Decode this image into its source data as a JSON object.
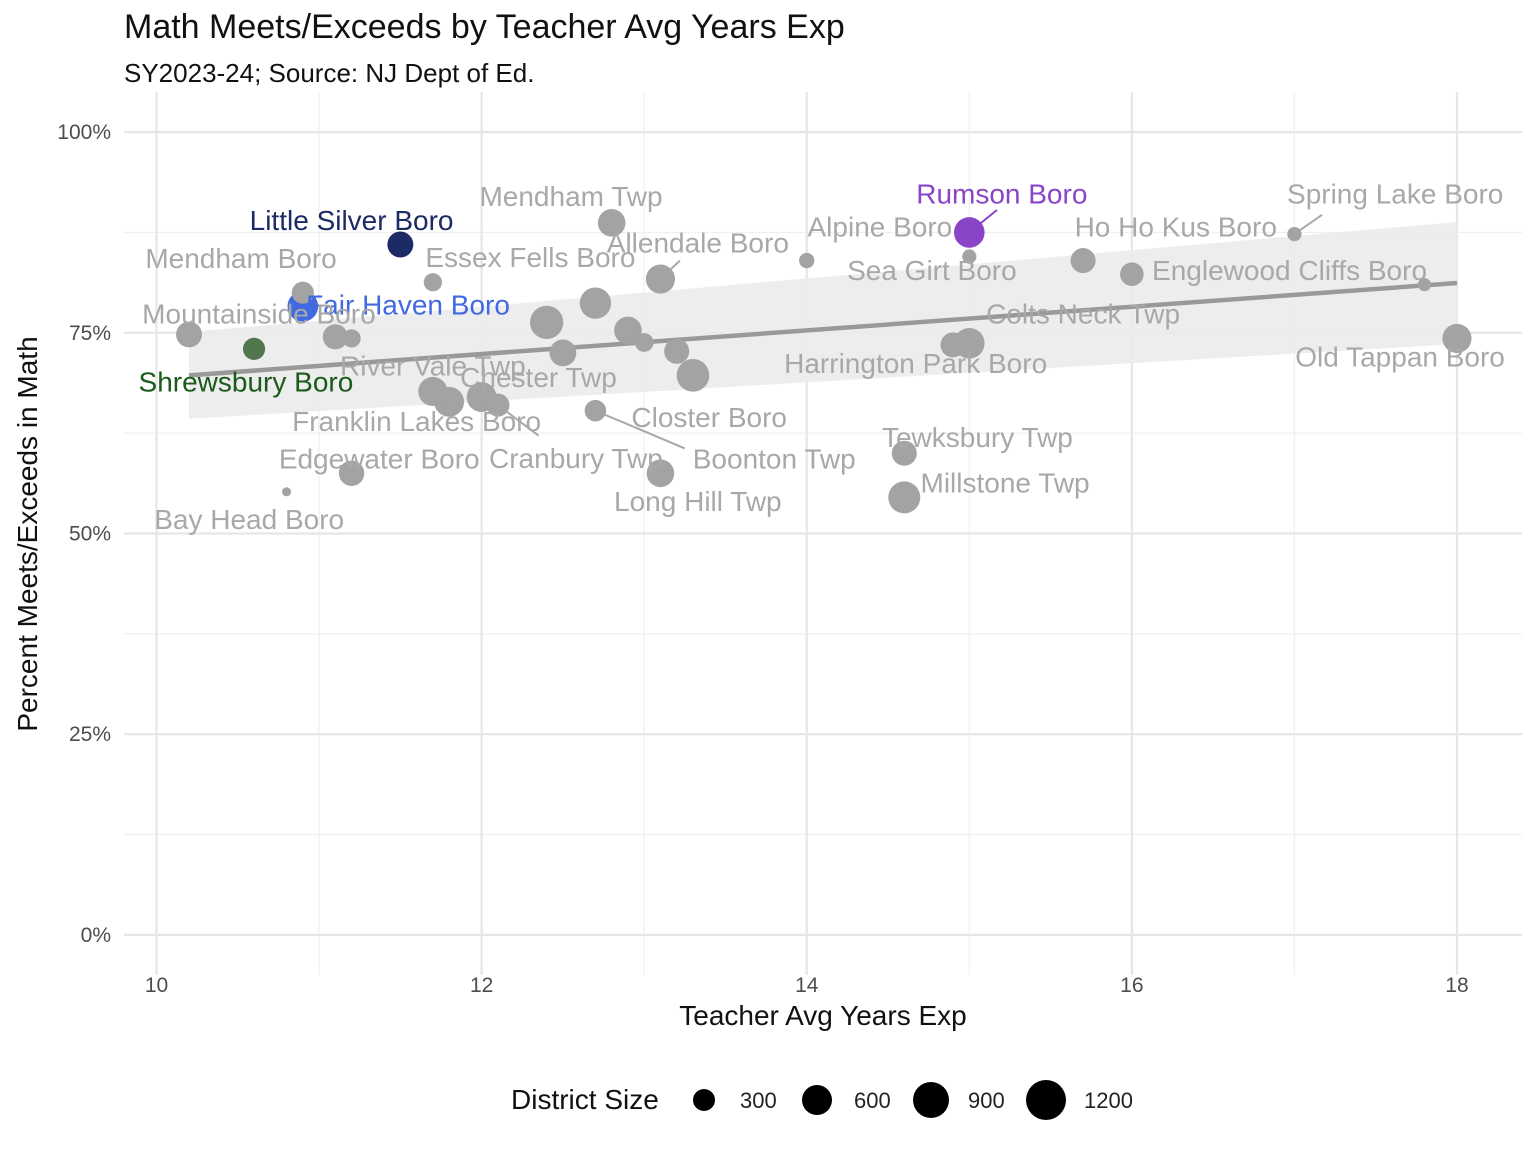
{
  "chart_data": {
    "type": "scatter",
    "title": "Math Meets/Exceeds by Teacher Avg Years Exp",
    "subtitle": "SY2023-24; Source: NJ Dept of Ed.",
    "xlabel": "Teacher Avg Years Exp",
    "ylabel": "Percent Meets/Exceeds in Math",
    "xlim": [
      9.8,
      18.4
    ],
    "ylim": [
      -0.05,
      1.05
    ],
    "x_ticks": [
      10,
      12,
      14,
      16,
      18
    ],
    "x_tick_labels": [
      "10",
      "12",
      "14",
      "16",
      "18"
    ],
    "y_ticks": [
      0,
      0.25,
      0.5,
      0.75,
      1.0
    ],
    "y_tick_labels": [
      "0%",
      "25%",
      "50%",
      "75%",
      "100%"
    ],
    "grid": true,
    "legend": {
      "title": "District Size",
      "position": "bottom",
      "sizes": [
        300,
        600,
        900,
        1200
      ],
      "labels": [
        "300",
        "600",
        "900",
        "1200"
      ]
    },
    "trend_line": {
      "x": [
        10.2,
        18.0
      ],
      "y": [
        0.697,
        0.812
      ],
      "band_lower": [
        0.643,
        0.736
      ],
      "band_upper": [
        0.751,
        0.888
      ],
      "color": "#999999"
    },
    "colors": {
      "default_point": "#a3a3a3",
      "default_label": "#a8a8a8",
      "little_silver": "#1c2a66",
      "fair_haven": "#4169e1",
      "rumson": "#8a44c8",
      "shrewsbury": "#52774f",
      "shrewsbury_label": "#1a5a1a"
    },
    "points": [
      {
        "x": 10.2,
        "y": 0.748,
        "size": 650,
        "color": "default_point"
      },
      {
        "x": 10.6,
        "y": 0.73,
        "size": 450,
        "color": "shrewsbury"
      },
      {
        "x": 10.8,
        "y": 0.552,
        "size": 40,
        "color": "default_point"
      },
      {
        "x": 10.9,
        "y": 0.8,
        "size": 450,
        "color": "default_point"
      },
      {
        "x": 10.9,
        "y": 0.783,
        "size": 950,
        "color": "fair_haven"
      },
      {
        "x": 11.1,
        "y": 0.745,
        "size": 600,
        "color": "default_point"
      },
      {
        "x": 11.2,
        "y": 0.743,
        "size": 280,
        "color": "default_point"
      },
      {
        "x": 11.2,
        "y": 0.575,
        "size": 620,
        "color": "default_point"
      },
      {
        "x": 11.5,
        "y": 0.86,
        "size": 650,
        "color": "little_silver"
      },
      {
        "x": 11.7,
        "y": 0.813,
        "size": 280,
        "color": "default_point"
      },
      {
        "x": 11.7,
        "y": 0.677,
        "size": 850,
        "color": "default_point"
      },
      {
        "x": 11.8,
        "y": 0.664,
        "size": 900,
        "color": "default_point"
      },
      {
        "x": 12.0,
        "y": 0.67,
        "size": 900,
        "color": "default_point"
      },
      {
        "x": 12.1,
        "y": 0.66,
        "size": 500,
        "color": "default_point"
      },
      {
        "x": 12.4,
        "y": 0.763,
        "size": 1150,
        "color": "default_point"
      },
      {
        "x": 12.5,
        "y": 0.725,
        "size": 700,
        "color": "default_point"
      },
      {
        "x": 12.7,
        "y": 0.787,
        "size": 1000,
        "color": "default_point"
      },
      {
        "x": 12.7,
        "y": 0.653,
        "size": 420,
        "color": "default_point"
      },
      {
        "x": 12.8,
        "y": 0.887,
        "size": 750,
        "color": "default_point"
      },
      {
        "x": 12.9,
        "y": 0.753,
        "size": 750,
        "color": "default_point"
      },
      {
        "x": 13.0,
        "y": 0.738,
        "size": 300,
        "color": "default_point"
      },
      {
        "x": 13.1,
        "y": 0.817,
        "size": 850,
        "color": "default_point"
      },
      {
        "x": 13.1,
        "y": 0.575,
        "size": 750,
        "color": "default_point"
      },
      {
        "x": 13.2,
        "y": 0.727,
        "size": 600,
        "color": "default_point"
      },
      {
        "x": 13.3,
        "y": 0.697,
        "size": 1100,
        "color": "default_point"
      },
      {
        "x": 14.0,
        "y": 0.84,
        "size": 180,
        "color": "default_point"
      },
      {
        "x": 14.6,
        "y": 0.6,
        "size": 600,
        "color": "default_point"
      },
      {
        "x": 14.6,
        "y": 0.545,
        "size": 1050,
        "color": "default_point"
      },
      {
        "x": 14.9,
        "y": 0.735,
        "size": 600,
        "color": "default_point"
      },
      {
        "x": 15.0,
        "y": 0.737,
        "size": 950,
        "color": "default_point"
      },
      {
        "x": 15.0,
        "y": 0.845,
        "size": 150,
        "color": "default_point"
      },
      {
        "x": 15.0,
        "y": 0.875,
        "size": 950,
        "color": "rumson"
      },
      {
        "x": 15.7,
        "y": 0.84,
        "size": 600,
        "color": "default_point"
      },
      {
        "x": 16.0,
        "y": 0.823,
        "size": 520,
        "color": "default_point"
      },
      {
        "x": 17.0,
        "y": 0.873,
        "size": 150,
        "color": "default_point"
      },
      {
        "x": 17.8,
        "y": 0.81,
        "size": 120,
        "color": "default_point"
      },
      {
        "x": 18.0,
        "y": 0.743,
        "size": 850,
        "color": "default_point"
      }
    ],
    "annotations": [
      {
        "text": "Little Silver Boro",
        "x": 11.2,
        "y": 0.887,
        "color": "little_silver",
        "anchor": "middle"
      },
      {
        "text": "Fair Haven Boro",
        "x": 10.92,
        "y": 0.782,
        "color": "fair_haven",
        "anchor": "start"
      },
      {
        "text": "Rumson Boro",
        "x": 15.2,
        "y": 0.92,
        "color": "rumson",
        "anchor": "middle"
      },
      {
        "text": "Shrewsbury Boro",
        "x": 10.55,
        "y": 0.686,
        "color": "shrewsbury_label",
        "anchor": "middle"
      },
      {
        "text": "Mendham Twp",
        "x": 12.55,
        "y": 0.917,
        "color": "default_label",
        "anchor": "middle"
      },
      {
        "text": "Mendham Boro",
        "x": 10.52,
        "y": 0.84,
        "color": "default_label",
        "anchor": "middle"
      },
      {
        "text": "Essex Fells Boro",
        "x": 12.3,
        "y": 0.841,
        "color": "default_label",
        "anchor": "middle"
      },
      {
        "text": "Allendale Boro",
        "x": 13.33,
        "y": 0.859,
        "color": "default_label",
        "anchor": "middle"
      },
      {
        "text": "Alpine Boro",
        "x": 14.45,
        "y": 0.879,
        "color": "default_label",
        "anchor": "middle"
      },
      {
        "text": "Sea Girt Boro",
        "x": 14.77,
        "y": 0.825,
        "color": "default_label",
        "anchor": "middle"
      },
      {
        "text": "Spring Lake Boro",
        "x": 17.62,
        "y": 0.92,
        "color": "default_label",
        "anchor": "middle"
      },
      {
        "text": "Ho Ho Kus Boro",
        "x": 16.27,
        "y": 0.879,
        "color": "default_label",
        "anchor": "middle"
      },
      {
        "text": "Englewood Cliffs Boro",
        "x": 16.97,
        "y": 0.825,
        "color": "default_label",
        "anchor": "middle"
      },
      {
        "text": "Mountainside Boro",
        "x": 10.63,
        "y": 0.771,
        "color": "default_label",
        "anchor": "middle"
      },
      {
        "text": "Colts Neck Twp",
        "x": 15.7,
        "y": 0.771,
        "color": "default_label",
        "anchor": "middle"
      },
      {
        "text": "River Vale Twp",
        "x": 11.7,
        "y": 0.706,
        "color": "default_label",
        "anchor": "middle"
      },
      {
        "text": "Chester Twp",
        "x": 12.35,
        "y": 0.692,
        "color": "default_label",
        "anchor": "middle"
      },
      {
        "text": "Harrington Park Boro",
        "x": 14.67,
        "y": 0.709,
        "color": "default_label",
        "anchor": "middle"
      },
      {
        "text": "Old Tappan Boro",
        "x": 17.65,
        "y": 0.717,
        "color": "default_label",
        "anchor": "middle"
      },
      {
        "text": "Franklin Lakes Boro",
        "x": 11.6,
        "y": 0.637,
        "color": "default_label",
        "anchor": "middle"
      },
      {
        "text": "Closter Boro",
        "x": 13.4,
        "y": 0.642,
        "color": "default_label",
        "anchor": "middle"
      },
      {
        "text": "Tewksbury Twp",
        "x": 15.05,
        "y": 0.617,
        "color": "default_label",
        "anchor": "middle"
      },
      {
        "text": "Edgewater Boro",
        "x": 11.37,
        "y": 0.59,
        "color": "default_label",
        "anchor": "middle"
      },
      {
        "text": "Cranbury Twp",
        "x": 12.58,
        "y": 0.591,
        "color": "default_label",
        "anchor": "middle"
      },
      {
        "text": "Boonton Twp",
        "x": 13.8,
        "y": 0.59,
        "color": "default_label",
        "anchor": "middle"
      },
      {
        "text": "Millstone Twp",
        "x": 15.22,
        "y": 0.56,
        "color": "default_label",
        "anchor": "middle"
      },
      {
        "text": "Long Hill Twp",
        "x": 13.33,
        "y": 0.537,
        "color": "default_label",
        "anchor": "middle"
      },
      {
        "text": "Bay Head Boro",
        "x": 10.57,
        "y": 0.515,
        "color": "default_label",
        "anchor": "middle"
      }
    ],
    "leader_lines": [
      {
        "x1": 15.0,
        "y1": 0.875,
        "x2": 15.17,
        "y2": 0.903,
        "color": "rumson"
      },
      {
        "x1": 17.0,
        "y1": 0.873,
        "x2": 17.17,
        "y2": 0.897,
        "color": "default_label"
      },
      {
        "x1": 13.1,
        "y1": 0.817,
        "x2": 13.22,
        "y2": 0.84,
        "color": "default_label"
      },
      {
        "x1": 12.7,
        "y1": 0.653,
        "x2": 13.25,
        "y2": 0.606,
        "color": "default_label"
      },
      {
        "x1": 12.1,
        "y1": 0.66,
        "x2": 12.35,
        "y2": 0.622,
        "color": "default_label"
      }
    ]
  }
}
